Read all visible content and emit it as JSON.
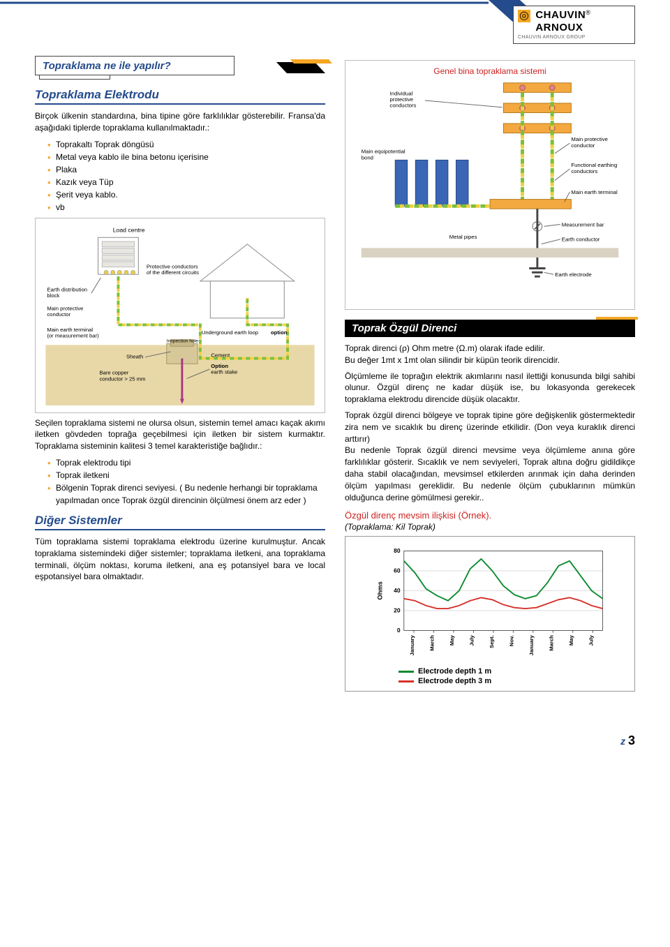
{
  "logo": {
    "brand1": "CHAUVIN",
    "brand2": "ARNOUX",
    "sub": "CHAUVIN ARNOUX GROUP",
    "reg": "®"
  },
  "left": {
    "boxed_title": "Topraklama ne ile yapılır?",
    "h_electrode": "Topraklama Elektrodu",
    "p1": "Birçok ülkenin standardına, bina tipine göre farklılıklar gösterebilir. Fransa'da aşağıdaki tiplerde topraklama kullanılmaktadır.:",
    "list1": [
      "Toprakaltı Toprak döngüsü",
      "Metal veya kablo ile bina betonu içerisine",
      "Plaka",
      "Kazık veya Tüp",
      "Şerit veya kablo.",
      "vb"
    ],
    "diag_labels": {
      "load_centre": "Load centre",
      "protective_conductors": "Protective conductors of the different circuits",
      "earth_dist": "Earth distribution block",
      "main_protective": "Main protective conductor",
      "main_earth_term": "Main earth terminal (or measurement bar)",
      "underground": "Underground earth loop option",
      "inspection": "Inspection hole",
      "sheath": "Sheath",
      "bare_copper": "Bare copper conductor > 25 mm",
      "cement": "Cement",
      "option_stake": "Option earth stake"
    },
    "p2": "Seçilen topraklama sistemi ne olursa olsun, sistemin temel amacı kaçak akımı iletken gövdeden toprağa geçebilmesi için iletken bir sistem kurmaktır. Topraklama sisteminin kalitesi 3 temel karakteristiğe bağlıdır.:",
    "list2": [
      "Toprak elektrodu tipi",
      "Toprak iletkeni",
      "Bölgenin Toprak direnci seviyesi. ( Bu nedenle herhangi bir topraklama yapılmadan once Toprak özgül direncinin ölçülmesi önem arz eder )"
    ],
    "h_other": "Diğer Sistemler",
    "p3": "Tüm topraklama sistemi topraklama elektrodu üzerine kurulmuştur. Ancak topraklama sistemindeki diğer sistemler; topraklama iletkeni, ana topraklama terminali, ölçüm noktası, koruma iletkeni, ana eş potansiyel bara ve local eşpotansiyel bara olmaktadır."
  },
  "right": {
    "diag_title": "Genel bina topraklama sistemi",
    "labels": {
      "individual": "Individual protective conductors",
      "main_equi": "Main equipotential bond",
      "main_prot": "Main protective conductor",
      "func_earth": "Functional earthing conductors",
      "main_earth_term": "Main earth terminal",
      "measurement_bar": "Measurement bar",
      "metal_pipes": "Metal pipes",
      "earth_cond": "Earth conductor",
      "earth_elec": "Earth electrode"
    },
    "bar_title": "Toprak Özgül Direnci",
    "p1a": "Toprak direnci (ρ) Ohm metre (Ω.m) olarak ifade edilir.",
    "p1b": "Bu değer 1mt x 1mt olan silindir bir küpün teorik direncidir.",
    "p2": "Ölçümleme ile toprağın elektrik akımlarını nasıl ilettiği konusunda bilgi sahibi olunur. Özgül direnç ne kadar düşük ise, bu lokasyonda gerekecek topraklama elektrodu direncide düşük olacaktır.",
    "p3": "Toprak özgül direnci bölgeye ve toprak tipine göre değişkenlik göstermektedir zira nem ve sıcaklık bu direnç üzerinde etkilidir. (Don veya kuraklık direnci arttırır)\nBu nedenle Toprak özgül direnci mevsime veya ölçümleme anına göre farklılıklar gösterir. Sıcaklık ve nem seviyeleri, Toprak altına doğru gidildikçe daha stabil olacağından, mevsimsel etkilerden arınmak için daha derinden ölçüm yapılması gereklidir. Bu nedenle ölçüm çubuklarının mümkün olduğunca derine gömülmesi gerekir..",
    "chart_title": "Özgül direnç mevsim ilişkisi (Örnek).",
    "chart_sub": "(Topraklama: Kil Toprak)",
    "chart": {
      "type": "line",
      "ylabel": "Ohms",
      "ylim": [
        0,
        80
      ],
      "yticks": [
        0,
        20,
        40,
        60,
        80
      ],
      "x_labels": [
        "January",
        "March",
        "May",
        "July",
        "Sept.",
        "Nov.",
        "January",
        "March",
        "May",
        "July"
      ],
      "series": [
        {
          "name": "Electrode depth 1 m",
          "color": "#0b8a2e",
          "values": [
            70,
            58,
            42,
            35,
            30,
            40,
            62,
            72,
            60,
            45,
            36,
            32,
            35,
            48,
            65,
            70,
            55,
            40,
            32
          ]
        },
        {
          "name": "Electrode depth 3 m",
          "color": "#d6302a",
          "values": [
            32,
            30,
            25,
            22,
            22,
            25,
            30,
            33,
            31,
            26,
            23,
            22,
            23,
            27,
            31,
            33,
            30,
            25,
            22
          ]
        }
      ],
      "background": "#ffffff",
      "grid": "#d9d9d9",
      "axis": "#444",
      "label_fontsize": 9,
      "tick_fontsize": 9,
      "legend_fontsize": 11
    }
  },
  "footer": {
    "z": "z",
    "page": "3"
  },
  "colors": {
    "accent_blue": "#244b8c",
    "accent_orange": "#f5a623",
    "red": "#c22",
    "green_dash": "#7bbf3a"
  }
}
